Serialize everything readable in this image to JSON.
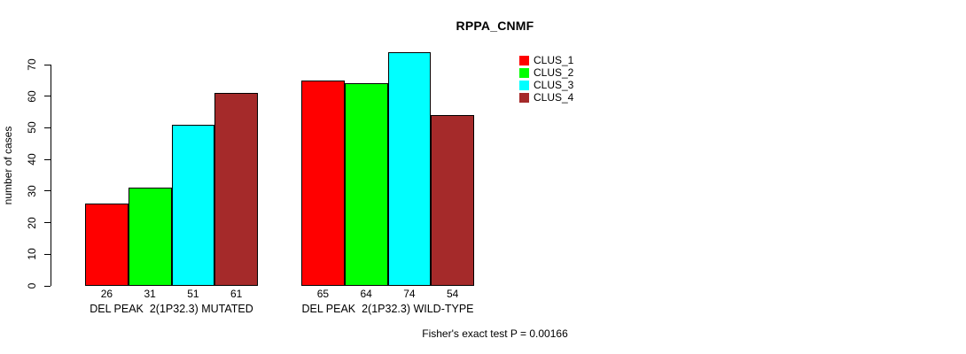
{
  "chart_data": {
    "type": "bar",
    "title": "RPPA_CNMF",
    "ylabel": "number of cases",
    "xlabel": "",
    "ylim": [
      0,
      70
    ],
    "yticks": [
      0,
      10,
      20,
      30,
      40,
      50,
      60,
      70
    ],
    "grid": false,
    "legend_position": "right",
    "categories": [
      "DEL PEAK  2(1P32.3) MUTATED",
      "DEL PEAK  2(1P32.3) WILD-TYPE"
    ],
    "series": [
      {
        "name": "CLUS_1",
        "color": "#FF0000",
        "values": [
          26,
          65
        ]
      },
      {
        "name": "CLUS_2",
        "color": "#00FF00",
        "values": [
          31,
          64
        ]
      },
      {
        "name": "CLUS_3",
        "color": "#00FFFF",
        "values": [
          51,
          74
        ]
      },
      {
        "name": "CLUS_4",
        "color": "#A52A2A",
        "values": [
          61,
          54
        ]
      }
    ],
    "bar_value_labels": [
      [
        26,
        31,
        51,
        61
      ],
      [
        65,
        64,
        74,
        54
      ]
    ],
    "annotation": "Fisher's exact test P = 0.00166"
  }
}
